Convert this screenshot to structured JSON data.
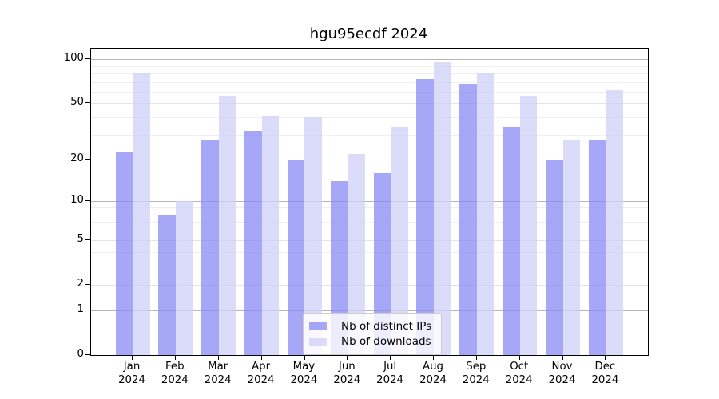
{
  "chart_data": {
    "type": "bar",
    "title": "hgu95ecdf 2024",
    "categories": [
      "Jan",
      "Feb",
      "Mar",
      "Apr",
      "May",
      "Jun",
      "Jul",
      "Aug",
      "Sep",
      "Oct",
      "Nov",
      "Dec"
    ],
    "x_tick_second_line": "2024",
    "series": [
      {
        "name": "Nb of distinct IPs",
        "color": "#8a8af4",
        "values": [
          23,
          8,
          28,
          32,
          20,
          14,
          16,
          73,
          68,
          34,
          20,
          28
        ]
      },
      {
        "name": "Nb of downloads",
        "color": "#cfcff8",
        "values": [
          80,
          10,
          56,
          41,
          40,
          22,
          34,
          95,
          80,
          56,
          28,
          61
        ]
      }
    ],
    "y_scale": "log10(1+x)",
    "y_ticks": [
      0,
      1,
      2,
      5,
      10,
      20,
      50,
      100
    ],
    "y_minor_gridlines": [
      3,
      4,
      6,
      7,
      8,
      9,
      30,
      40,
      60,
      70,
      80,
      90
    ],
    "y_decade_gridlines": [
      1,
      10,
      100
    ],
    "ylim": [
      0,
      118
    ],
    "grid": true,
    "legend_position": "lower center",
    "grid_color_decade": "#b6b6b6",
    "grid_color_major": "#e3e3e3",
    "grid_color_minor": "#efefef"
  }
}
